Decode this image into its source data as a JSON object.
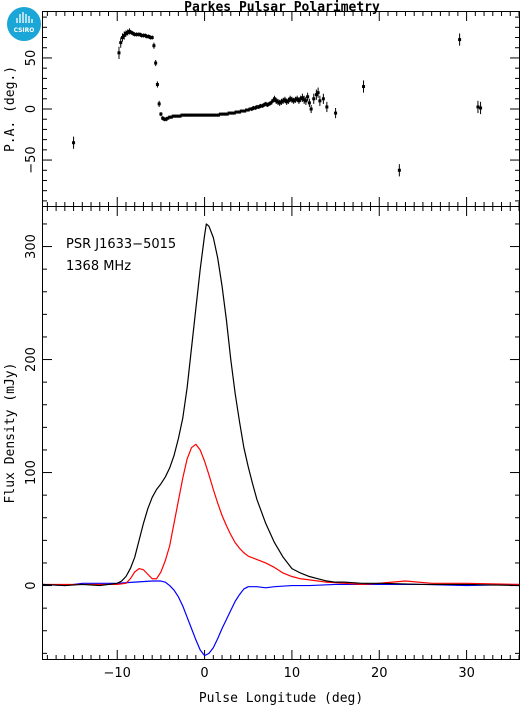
{
  "title": "Parkes Pulsar Polarimetry",
  "logo": {
    "text": "CSIRO",
    "color": "#1aa6d6"
  },
  "colors": {
    "total": "#000000",
    "linear": "#ff0000",
    "circular": "#0000ff",
    "pa": "#000000"
  },
  "chart_data": [
    {
      "type": "scatter",
      "name": "position-angle",
      "ylabel": "P.A. (deg.)",
      "xlim": [
        -18.5,
        36
      ],
      "ylim": [
        -95,
        95
      ],
      "yticks": [
        -50,
        0,
        50
      ],
      "xticks": [
        -10,
        0,
        10,
        20,
        30
      ],
      "points": [
        [
          -15.0,
          -33,
          6
        ],
        [
          -9.8,
          55,
          6
        ],
        [
          -9.6,
          65,
          5
        ],
        [
          -9.4,
          70,
          4
        ],
        [
          -9.2,
          72,
          4
        ],
        [
          -9.0,
          74,
          3
        ],
        [
          -8.8,
          75,
          3
        ],
        [
          -8.6,
          76,
          3
        ],
        [
          -8.4,
          75,
          2
        ],
        [
          -8.2,
          74,
          2
        ],
        [
          -8.0,
          73,
          2
        ],
        [
          -7.8,
          73,
          2
        ],
        [
          -7.6,
          73,
          2
        ],
        [
          -7.4,
          73,
          2
        ],
        [
          -7.2,
          72,
          2
        ],
        [
          -7.0,
          72,
          2
        ],
        [
          -6.8,
          72,
          2
        ],
        [
          -6.6,
          71,
          2
        ],
        [
          -6.4,
          71,
          2
        ],
        [
          -6.2,
          70,
          2
        ],
        [
          -6.0,
          70,
          2
        ],
        [
          -5.8,
          62,
          3
        ],
        [
          -5.6,
          45,
          3
        ],
        [
          -5.4,
          24,
          3
        ],
        [
          -5.2,
          5,
          3
        ],
        [
          -5.0,
          -5,
          2
        ],
        [
          -4.8,
          -9,
          2
        ],
        [
          -4.6,
          -10,
          2
        ],
        [
          -4.4,
          -10,
          2
        ],
        [
          -4.2,
          -9,
          1
        ],
        [
          -4.0,
          -8,
          1
        ],
        [
          -3.8,
          -8,
          1
        ],
        [
          -3.6,
          -7,
          1
        ],
        [
          -3.4,
          -7,
          1
        ],
        [
          -3.2,
          -7,
          1
        ],
        [
          -3.0,
          -7,
          1
        ],
        [
          -2.8,
          -7,
          1
        ],
        [
          -2.6,
          -6,
          1
        ],
        [
          -2.4,
          -6,
          1
        ],
        [
          -2.2,
          -6,
          1
        ],
        [
          -2.0,
          -6,
          1
        ],
        [
          -1.8,
          -6,
          1
        ],
        [
          -1.6,
          -6,
          1
        ],
        [
          -1.4,
          -6,
          1
        ],
        [
          -1.2,
          -6,
          1
        ],
        [
          -1.0,
          -6,
          1
        ],
        [
          -0.8,
          -6,
          1
        ],
        [
          -0.6,
          -6,
          1
        ],
        [
          -0.4,
          -6,
          1
        ],
        [
          -0.2,
          -6,
          1
        ],
        [
          0.0,
          -6,
          1
        ],
        [
          0.2,
          -6,
          1
        ],
        [
          0.4,
          -6,
          1
        ],
        [
          0.6,
          -6,
          1
        ],
        [
          0.8,
          -6,
          1
        ],
        [
          1.0,
          -6,
          1
        ],
        [
          1.2,
          -6,
          1
        ],
        [
          1.4,
          -6,
          1
        ],
        [
          1.6,
          -6,
          1
        ],
        [
          1.8,
          -5,
          1
        ],
        [
          2.0,
          -5,
          1
        ],
        [
          2.2,
          -5,
          1
        ],
        [
          2.4,
          -5,
          1
        ],
        [
          2.6,
          -5,
          1
        ],
        [
          2.8,
          -4,
          1
        ],
        [
          3.0,
          -4,
          1
        ],
        [
          3.2,
          -4,
          1
        ],
        [
          3.4,
          -4,
          1
        ],
        [
          3.6,
          -3,
          1
        ],
        [
          3.8,
          -3,
          1
        ],
        [
          4.0,
          -3,
          1
        ],
        [
          4.2,
          -2,
          1
        ],
        [
          4.4,
          -2,
          1
        ],
        [
          4.6,
          -2,
          1
        ],
        [
          4.8,
          -1,
          1
        ],
        [
          5.0,
          -1,
          1
        ],
        [
          5.2,
          0,
          1
        ],
        [
          5.4,
          0,
          2
        ],
        [
          5.6,
          1,
          2
        ],
        [
          5.8,
          1,
          2
        ],
        [
          6.0,
          2,
          2
        ],
        [
          6.2,
          2,
          2
        ],
        [
          6.4,
          3,
          2
        ],
        [
          6.6,
          3,
          2
        ],
        [
          6.8,
          4,
          2
        ],
        [
          7.0,
          5,
          2
        ],
        [
          7.2,
          4,
          2
        ],
        [
          7.4,
          5,
          2
        ],
        [
          7.6,
          6,
          2
        ],
        [
          7.8,
          8,
          2
        ],
        [
          8.0,
          10,
          3
        ],
        [
          8.2,
          8,
          3
        ],
        [
          8.4,
          7,
          3
        ],
        [
          8.6,
          6,
          3
        ],
        [
          8.8,
          7,
          3
        ],
        [
          9.0,
          8,
          3
        ],
        [
          9.2,
          9,
          3
        ],
        [
          9.4,
          7,
          3
        ],
        [
          9.6,
          8,
          3
        ],
        [
          9.8,
          10,
          3
        ],
        [
          10.0,
          9,
          3
        ],
        [
          10.2,
          8,
          3
        ],
        [
          10.4,
          9,
          3
        ],
        [
          10.6,
          10,
          3
        ],
        [
          10.8,
          8,
          3
        ],
        [
          11.0,
          10,
          3
        ],
        [
          11.2,
          11,
          4
        ],
        [
          11.4,
          9,
          4
        ],
        [
          11.6,
          8,
          4
        ],
        [
          11.8,
          12,
          4
        ],
        [
          12.0,
          6,
          4
        ],
        [
          12.2,
          0,
          4
        ],
        [
          12.5,
          10,
          5
        ],
        [
          12.8,
          14,
          5
        ],
        [
          13.0,
          16,
          5
        ],
        [
          13.2,
          8,
          5
        ],
        [
          13.6,
          10,
          5
        ],
        [
          14.0,
          2,
          5
        ],
        [
          15.0,
          -4,
          5
        ],
        [
          18.2,
          22,
          6
        ],
        [
          22.3,
          -60,
          6
        ],
        [
          29.2,
          68,
          6
        ],
        [
          31.3,
          2,
          6
        ],
        [
          31.6,
          1,
          6
        ]
      ]
    },
    {
      "type": "line",
      "name": "flux-profile",
      "xlabel": "Pulse Longitude (deg)",
      "ylabel": "Flux Density (mJy)",
      "xlim": [
        -18.5,
        36
      ],
      "ylim": [
        -65,
        335
      ],
      "yticks": [
        0,
        100,
        200,
        300
      ],
      "xticks": [
        -10,
        0,
        10,
        20,
        30
      ],
      "annotations": [
        "PSR J1633−5015",
        "1368 MHz"
      ],
      "total_intensity": [
        [
          -18.5,
          1
        ],
        [
          -16,
          0
        ],
        [
          -14,
          1
        ],
        [
          -12,
          0
        ],
        [
          -11,
          1
        ],
        [
          -10,
          2
        ],
        [
          -9.5,
          4
        ],
        [
          -9,
          8
        ],
        [
          -8.5,
          15
        ],
        [
          -8,
          25
        ],
        [
          -7.5,
          40
        ],
        [
          -7,
          55
        ],
        [
          -6.5,
          68
        ],
        [
          -6,
          78
        ],
        [
          -5.5,
          85
        ],
        [
          -5,
          90
        ],
        [
          -4.5,
          96
        ],
        [
          -4,
          104
        ],
        [
          -3.5,
          115
        ],
        [
          -3,
          130
        ],
        [
          -2.5,
          148
        ],
        [
          -2,
          175
        ],
        [
          -1.5,
          210
        ],
        [
          -1,
          245
        ],
        [
          -0.5,
          280
        ],
        [
          0,
          310
        ],
        [
          0.2,
          320
        ],
        [
          0.5,
          318
        ],
        [
          1,
          308
        ],
        [
          1.5,
          290
        ],
        [
          2,
          265
        ],
        [
          2.5,
          235
        ],
        [
          3,
          200
        ],
        [
          3.5,
          170
        ],
        [
          4,
          145
        ],
        [
          4.5,
          122
        ],
        [
          5,
          105
        ],
        [
          5.5,
          90
        ],
        [
          6,
          76
        ],
        [
          7,
          55
        ],
        [
          8,
          38
        ],
        [
          9,
          25
        ],
        [
          10,
          15
        ],
        [
          11,
          11
        ],
        [
          12,
          8
        ],
        [
          13,
          6
        ],
        [
          14,
          4
        ],
        [
          15,
          3
        ],
        [
          16,
          3
        ],
        [
          18,
          2
        ],
        [
          20,
          2
        ],
        [
          25,
          1
        ],
        [
          30,
          1
        ],
        [
          36,
          0
        ]
      ],
      "linear_polarization": [
        [
          -18.5,
          1
        ],
        [
          -14,
          1
        ],
        [
          -10,
          1
        ],
        [
          -9,
          2
        ],
        [
          -8.5,
          6
        ],
        [
          -8,
          12
        ],
        [
          -7.5,
          15
        ],
        [
          -7,
          14
        ],
        [
          -6.5,
          10
        ],
        [
          -6,
          6
        ],
        [
          -5.5,
          6
        ],
        [
          -5,
          12
        ],
        [
          -4.5,
          22
        ],
        [
          -4,
          35
        ],
        [
          -3.5,
          55
        ],
        [
          -3,
          75
        ],
        [
          -2.5,
          95
        ],
        [
          -2,
          112
        ],
        [
          -1.5,
          122
        ],
        [
          -1,
          125
        ],
        [
          -0.5,
          120
        ],
        [
          0,
          110
        ],
        [
          0.5,
          98
        ],
        [
          1,
          85
        ],
        [
          1.5,
          73
        ],
        [
          2,
          62
        ],
        [
          2.5,
          53
        ],
        [
          3,
          45
        ],
        [
          3.5,
          38
        ],
        [
          4,
          33
        ],
        [
          4.5,
          29
        ],
        [
          5,
          26
        ],
        [
          6,
          23
        ],
        [
          7,
          20
        ],
        [
          8,
          16
        ],
        [
          9,
          11
        ],
        [
          10,
          8
        ],
        [
          11,
          6
        ],
        [
          12,
          5
        ],
        [
          14,
          3
        ],
        [
          16,
          2
        ],
        [
          18,
          1
        ],
        [
          20,
          2
        ],
        [
          23,
          4
        ],
        [
          26,
          2
        ],
        [
          30,
          2
        ],
        [
          36,
          1
        ]
      ],
      "circular_polarization": [
        [
          -18.5,
          1
        ],
        [
          -16,
          0
        ],
        [
          -14,
          2
        ],
        [
          -12,
          2
        ],
        [
          -10,
          2
        ],
        [
          -8,
          3
        ],
        [
          -6,
          4
        ],
        [
          -5,
          4
        ],
        [
          -4.5,
          3
        ],
        [
          -4,
          0
        ],
        [
          -3.5,
          -4
        ],
        [
          -3,
          -10
        ],
        [
          -2.5,
          -18
        ],
        [
          -2,
          -28
        ],
        [
          -1.5,
          -38
        ],
        [
          -1,
          -48
        ],
        [
          -0.5,
          -57
        ],
        [
          0,
          -62
        ],
        [
          0.5,
          -60
        ],
        [
          1,
          -55
        ],
        [
          1.5,
          -47
        ],
        [
          2,
          -38
        ],
        [
          2.5,
          -30
        ],
        [
          3,
          -22
        ],
        [
          3.5,
          -14
        ],
        [
          4,
          -8
        ],
        [
          4.5,
          -3
        ],
        [
          5,
          -1
        ],
        [
          6,
          -1
        ],
        [
          7,
          -2
        ],
        [
          8,
          -1
        ],
        [
          10,
          0
        ],
        [
          12,
          0
        ],
        [
          15,
          1
        ],
        [
          20,
          1
        ],
        [
          25,
          1
        ],
        [
          30,
          0
        ],
        [
          36,
          1
        ]
      ]
    }
  ]
}
